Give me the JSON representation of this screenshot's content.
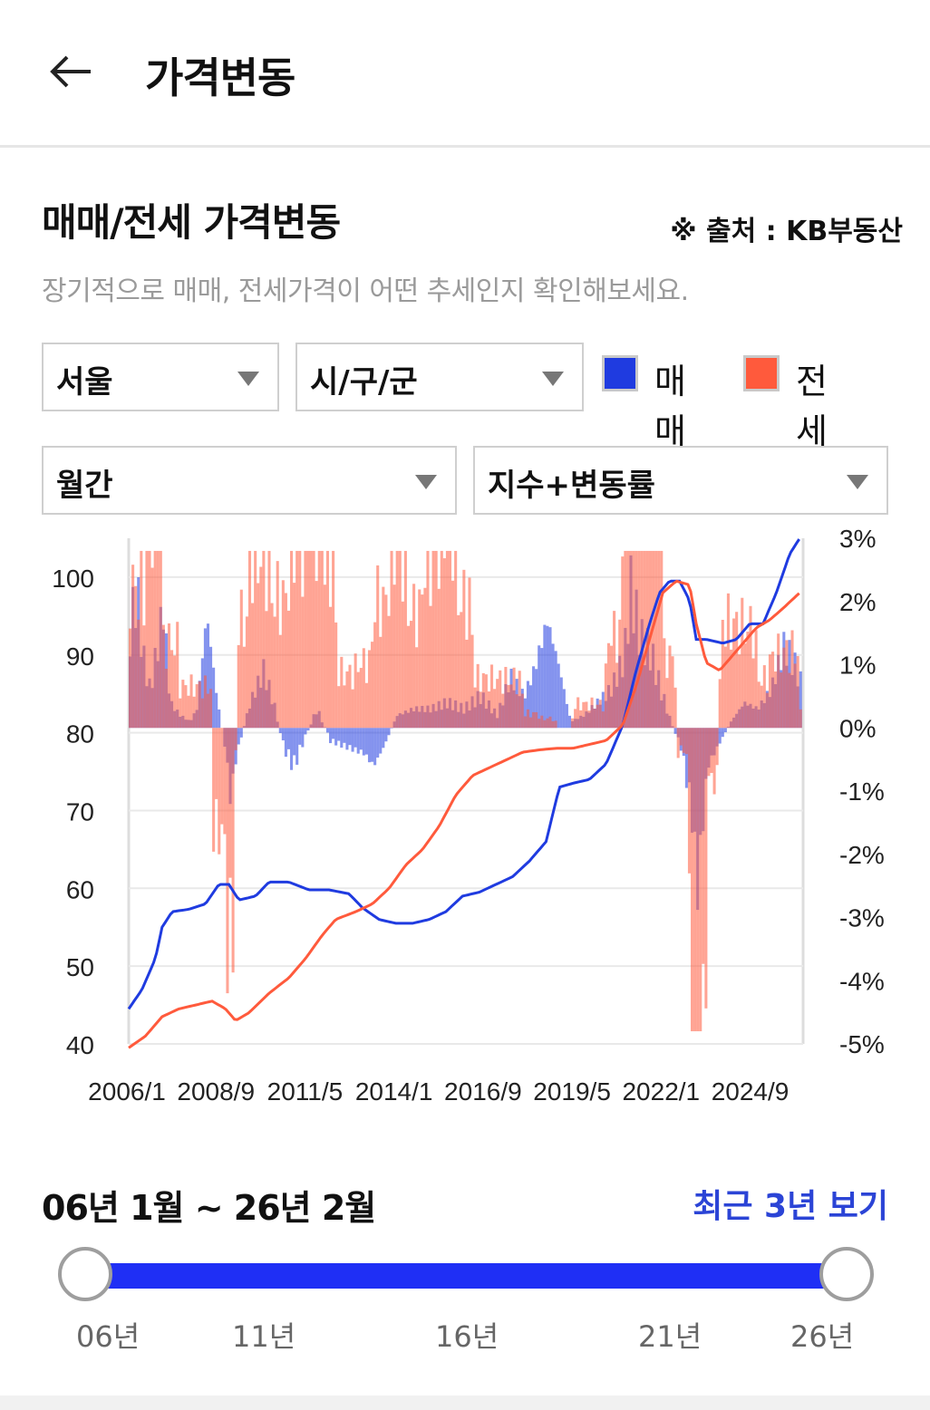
{
  "header": {
    "title": "가격변동"
  },
  "section": {
    "title": "매매/전세 가격변동",
    "source": "※ 출처 : KB부동산",
    "description": "장기적으로 매매, 전세가격이 어떤 추세인지 확인해보세요."
  },
  "filters": {
    "region": "서울",
    "district": "시/구/군",
    "period": "월간",
    "metric": "지수+변동률"
  },
  "legend": [
    {
      "label": "매매",
      "color": "#1f3be0"
    },
    {
      "label": "전세",
      "color": "#ff5a3c"
    }
  ],
  "chart_data": {
    "type": "line",
    "x_tick_labels": [
      "2006/1",
      "2008/9",
      "2011/5",
      "2014/1",
      "2016/9",
      "2019/5",
      "2022/1",
      "2024/9"
    ],
    "y_left_ticks": [
      "100",
      "90",
      "80",
      "70",
      "60",
      "50",
      "40"
    ],
    "y_left_range": [
      40,
      105
    ],
    "y_right_ticks": [
      "3%",
      "2%",
      "1%",
      "0%",
      "-1%",
      "-2%",
      "-3%",
      "-4%",
      "-5%"
    ],
    "y_right_range": [
      -5,
      3
    ],
    "grid": true,
    "series": [
      {
        "name": "매매",
        "color": "#1f3be0",
        "index_points": [
          [
            2006.0,
            44.5
          ],
          [
            2006.4,
            47
          ],
          [
            2006.8,
            51
          ],
          [
            2007.0,
            55
          ],
          [
            2007.3,
            57
          ],
          [
            2007.8,
            57.3
          ],
          [
            2008.3,
            58
          ],
          [
            2008.7,
            60.5
          ],
          [
            2009.0,
            60.5
          ],
          [
            2009.3,
            58.5
          ],
          [
            2009.8,
            59
          ],
          [
            2010.2,
            60.8
          ],
          [
            2010.8,
            60.8
          ],
          [
            2011.4,
            59.8
          ],
          [
            2012.0,
            59.8
          ],
          [
            2012.6,
            59.3
          ],
          [
            2013.0,
            57.5
          ],
          [
            2013.5,
            56
          ],
          [
            2014.0,
            55.5
          ],
          [
            2014.5,
            55.5
          ],
          [
            2015.0,
            56
          ],
          [
            2015.5,
            57
          ],
          [
            2016.0,
            59
          ],
          [
            2016.5,
            59.5
          ],
          [
            2017.0,
            60.5
          ],
          [
            2017.5,
            61.5
          ],
          [
            2018.0,
            63.5
          ],
          [
            2018.5,
            66
          ],
          [
            2018.9,
            73
          ],
          [
            2019.3,
            73.5
          ],
          [
            2019.8,
            74
          ],
          [
            2020.3,
            76
          ],
          [
            2020.8,
            81
          ],
          [
            2021.2,
            88
          ],
          [
            2021.6,
            94
          ],
          [
            2021.9,
            98
          ],
          [
            2022.2,
            99.5
          ],
          [
            2022.5,
            99.5
          ],
          [
            2022.8,
            97
          ],
          [
            2023.0,
            92
          ],
          [
            2023.3,
            92
          ],
          [
            2023.8,
            91.5
          ],
          [
            2024.2,
            92
          ],
          [
            2024.6,
            94
          ],
          [
            2025.0,
            94
          ],
          [
            2025.4,
            98
          ],
          [
            2025.8,
            103
          ],
          [
            2026.1,
            105
          ]
        ],
        "change_pct": [
          [
            2006.0,
            1.5
          ],
          [
            2006.2,
            2.2
          ],
          [
            2006.4,
            1.1
          ],
          [
            2006.6,
            0.6
          ],
          [
            2006.8,
            1.2
          ],
          [
            2007.0,
            1.9
          ],
          [
            2007.2,
            0.4
          ],
          [
            2007.5,
            0.2
          ],
          [
            2007.8,
            0.1
          ],
          [
            2008.0,
            0.3
          ],
          [
            2008.3,
            1.8
          ],
          [
            2008.6,
            0.5
          ],
          [
            2008.9,
            -0.5
          ],
          [
            2009.0,
            -1.1
          ],
          [
            2009.2,
            -0.4
          ],
          [
            2009.6,
            0.4
          ],
          [
            2010.0,
            0.9
          ],
          [
            2010.3,
            0.4
          ],
          [
            2010.6,
            -0.3
          ],
          [
            2010.9,
            -0.6
          ],
          [
            2011.2,
            -0.2
          ],
          [
            2011.6,
            0.3
          ],
          [
            2012.0,
            -0.2
          ],
          [
            2012.5,
            -0.3
          ],
          [
            2013.0,
            -0.4
          ],
          [
            2013.3,
            -0.6
          ],
          [
            2013.6,
            -0.3
          ],
          [
            2014.0,
            0.2
          ],
          [
            2014.5,
            0.3
          ],
          [
            2015.0,
            0.3
          ],
          [
            2015.5,
            0.4
          ],
          [
            2016.0,
            0.3
          ],
          [
            2016.5,
            0.5
          ],
          [
            2017.0,
            0.2
          ],
          [
            2017.4,
            0.8
          ],
          [
            2017.8,
            0.5
          ],
          [
            2018.1,
            0.9
          ],
          [
            2018.5,
            1.7
          ],
          [
            2018.8,
            1.1
          ],
          [
            2019.2,
            0.1
          ],
          [
            2019.6,
            0.2
          ],
          [
            2020.0,
            0.4
          ],
          [
            2020.4,
            0.6
          ],
          [
            2020.8,
            1.1
          ],
          [
            2021.0,
            2.2
          ],
          [
            2021.3,
            1.4
          ],
          [
            2021.6,
            1.2
          ],
          [
            2021.9,
            0.6
          ],
          [
            2022.2,
            0.1
          ],
          [
            2022.5,
            -0.3
          ],
          [
            2022.8,
            -1.2
          ],
          [
            2023.0,
            -2.5
          ],
          [
            2023.3,
            -0.6
          ],
          [
            2023.7,
            -0.2
          ],
          [
            2024.0,
            0.1
          ],
          [
            2024.4,
            0.4
          ],
          [
            2024.8,
            0.3
          ],
          [
            2025.2,
            0.6
          ],
          [
            2025.6,
            1.3
          ],
          [
            2025.9,
            1.0
          ],
          [
            2026.1,
            0.7
          ]
        ]
      },
      {
        "name": "전세",
        "color": "#ff5a3c",
        "index_points": [
          [
            2006.0,
            39.5
          ],
          [
            2006.5,
            41
          ],
          [
            2007.0,
            43.5
          ],
          [
            2007.5,
            44.5
          ],
          [
            2008.0,
            45
          ],
          [
            2008.5,
            45.5
          ],
          [
            2008.9,
            44.5
          ],
          [
            2009.2,
            43
          ],
          [
            2009.6,
            44
          ],
          [
            2010.2,
            46.5
          ],
          [
            2010.8,
            48.5
          ],
          [
            2011.3,
            51
          ],
          [
            2011.8,
            54
          ],
          [
            2012.2,
            56
          ],
          [
            2012.8,
            57
          ],
          [
            2013.3,
            58
          ],
          [
            2013.8,
            60
          ],
          [
            2014.3,
            63
          ],
          [
            2014.8,
            65
          ],
          [
            2015.3,
            68
          ],
          [
            2015.8,
            72
          ],
          [
            2016.3,
            74.5
          ],
          [
            2016.8,
            75.5
          ],
          [
            2017.3,
            76.5
          ],
          [
            2017.8,
            77.5
          ],
          [
            2018.3,
            77.8
          ],
          [
            2018.8,
            78
          ],
          [
            2019.3,
            78
          ],
          [
            2019.8,
            78.5
          ],
          [
            2020.3,
            79
          ],
          [
            2020.8,
            81
          ],
          [
            2021.2,
            86
          ],
          [
            2021.6,
            92
          ],
          [
            2022.0,
            98
          ],
          [
            2022.4,
            99.5
          ],
          [
            2022.8,
            99
          ],
          [
            2023.0,
            94
          ],
          [
            2023.3,
            89
          ],
          [
            2023.7,
            88
          ],
          [
            2024.0,
            89.5
          ],
          [
            2024.4,
            91.5
          ],
          [
            2024.8,
            93.5
          ],
          [
            2025.2,
            94.5
          ],
          [
            2025.6,
            96
          ],
          [
            2026.1,
            98
          ]
        ]
      }
    ]
  },
  "range": {
    "label": "06년 1월 ~ 26년 2월",
    "recent_button": "최근 3년 보기",
    "years": [
      "06년",
      "11년",
      "16년",
      "21년",
      "26년"
    ]
  }
}
